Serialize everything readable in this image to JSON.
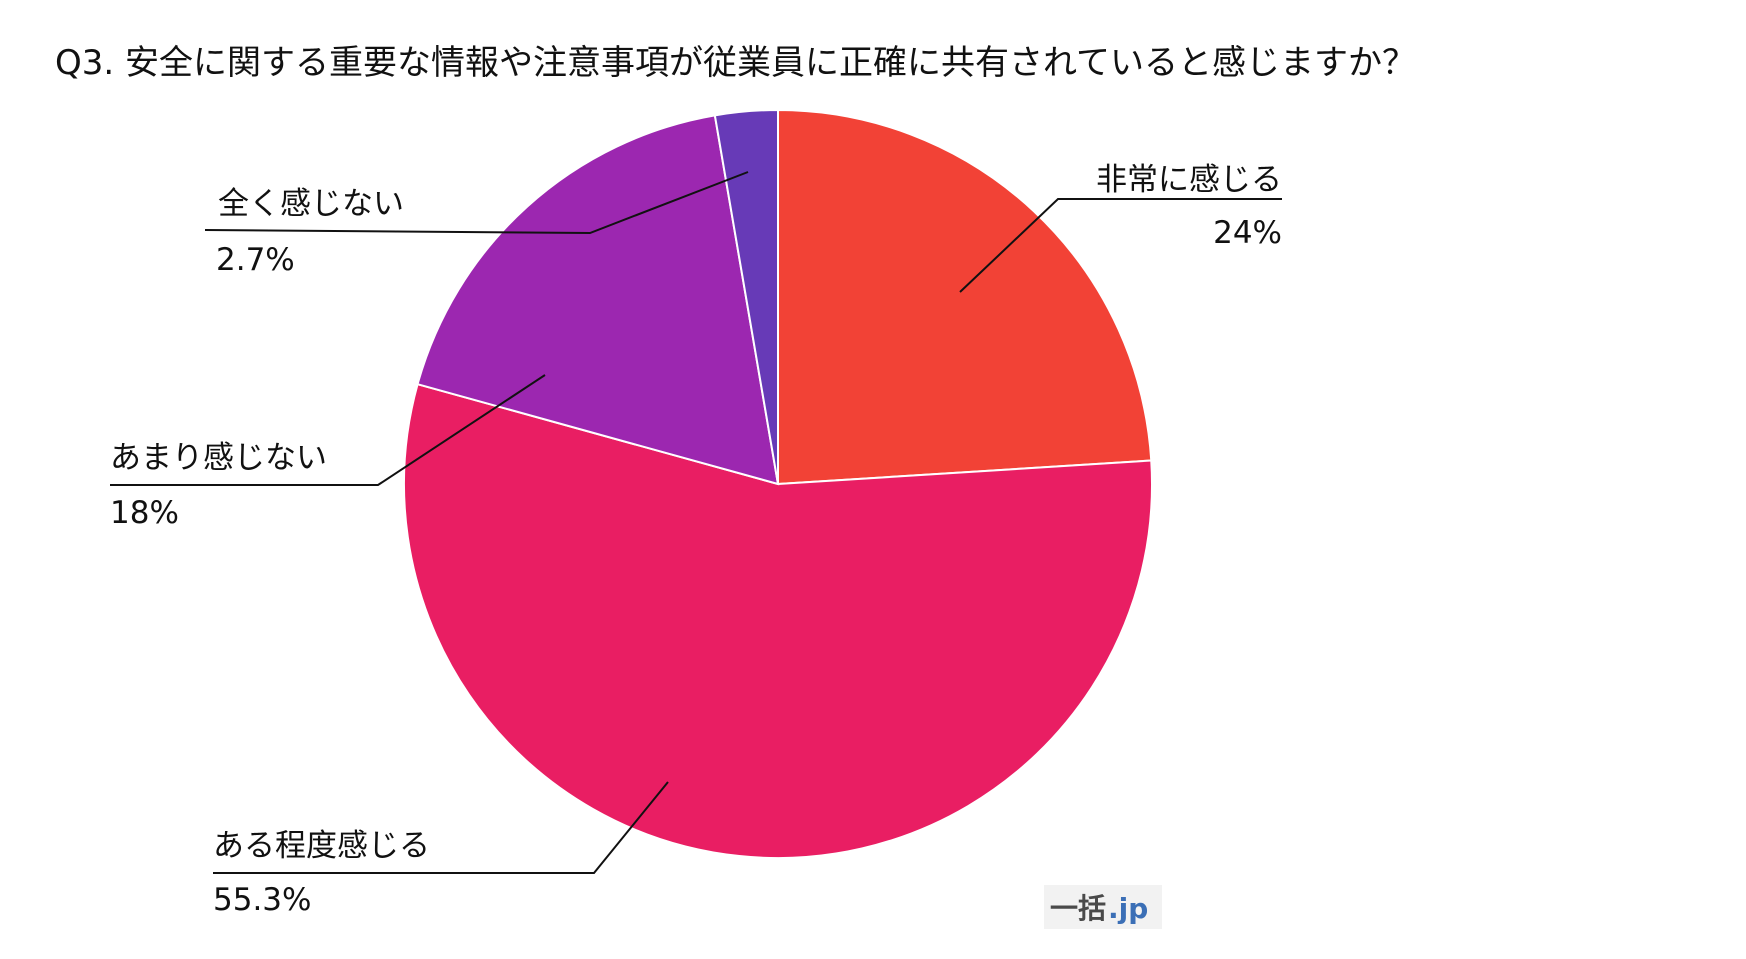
{
  "chart_data": {
    "type": "pie",
    "title": "Q3. 安全に関する重要な情報や注意事項が従業員に正確に共有されていると感じますか？",
    "slices": [
      {
        "label": "非常に感じる",
        "value": 24,
        "value_label": "24%",
        "color": "#f24236"
      },
      {
        "label": "ある程度感じる",
        "value": 55.3,
        "value_label": "55.3%",
        "color": "#e91e63"
      },
      {
        "label": "あまり感じない",
        "value": 18,
        "value_label": "18%",
        "color": "#9c27b0"
      },
      {
        "label": "全く感じない",
        "value": 2.7,
        "value_label": "2.7%",
        "color": "#673ab7"
      }
    ],
    "start_angle": "12 o'clock",
    "direction": "clockwise",
    "legend": "none"
  },
  "watermark": {
    "part1": "一括",
    "part2": ".jp"
  }
}
